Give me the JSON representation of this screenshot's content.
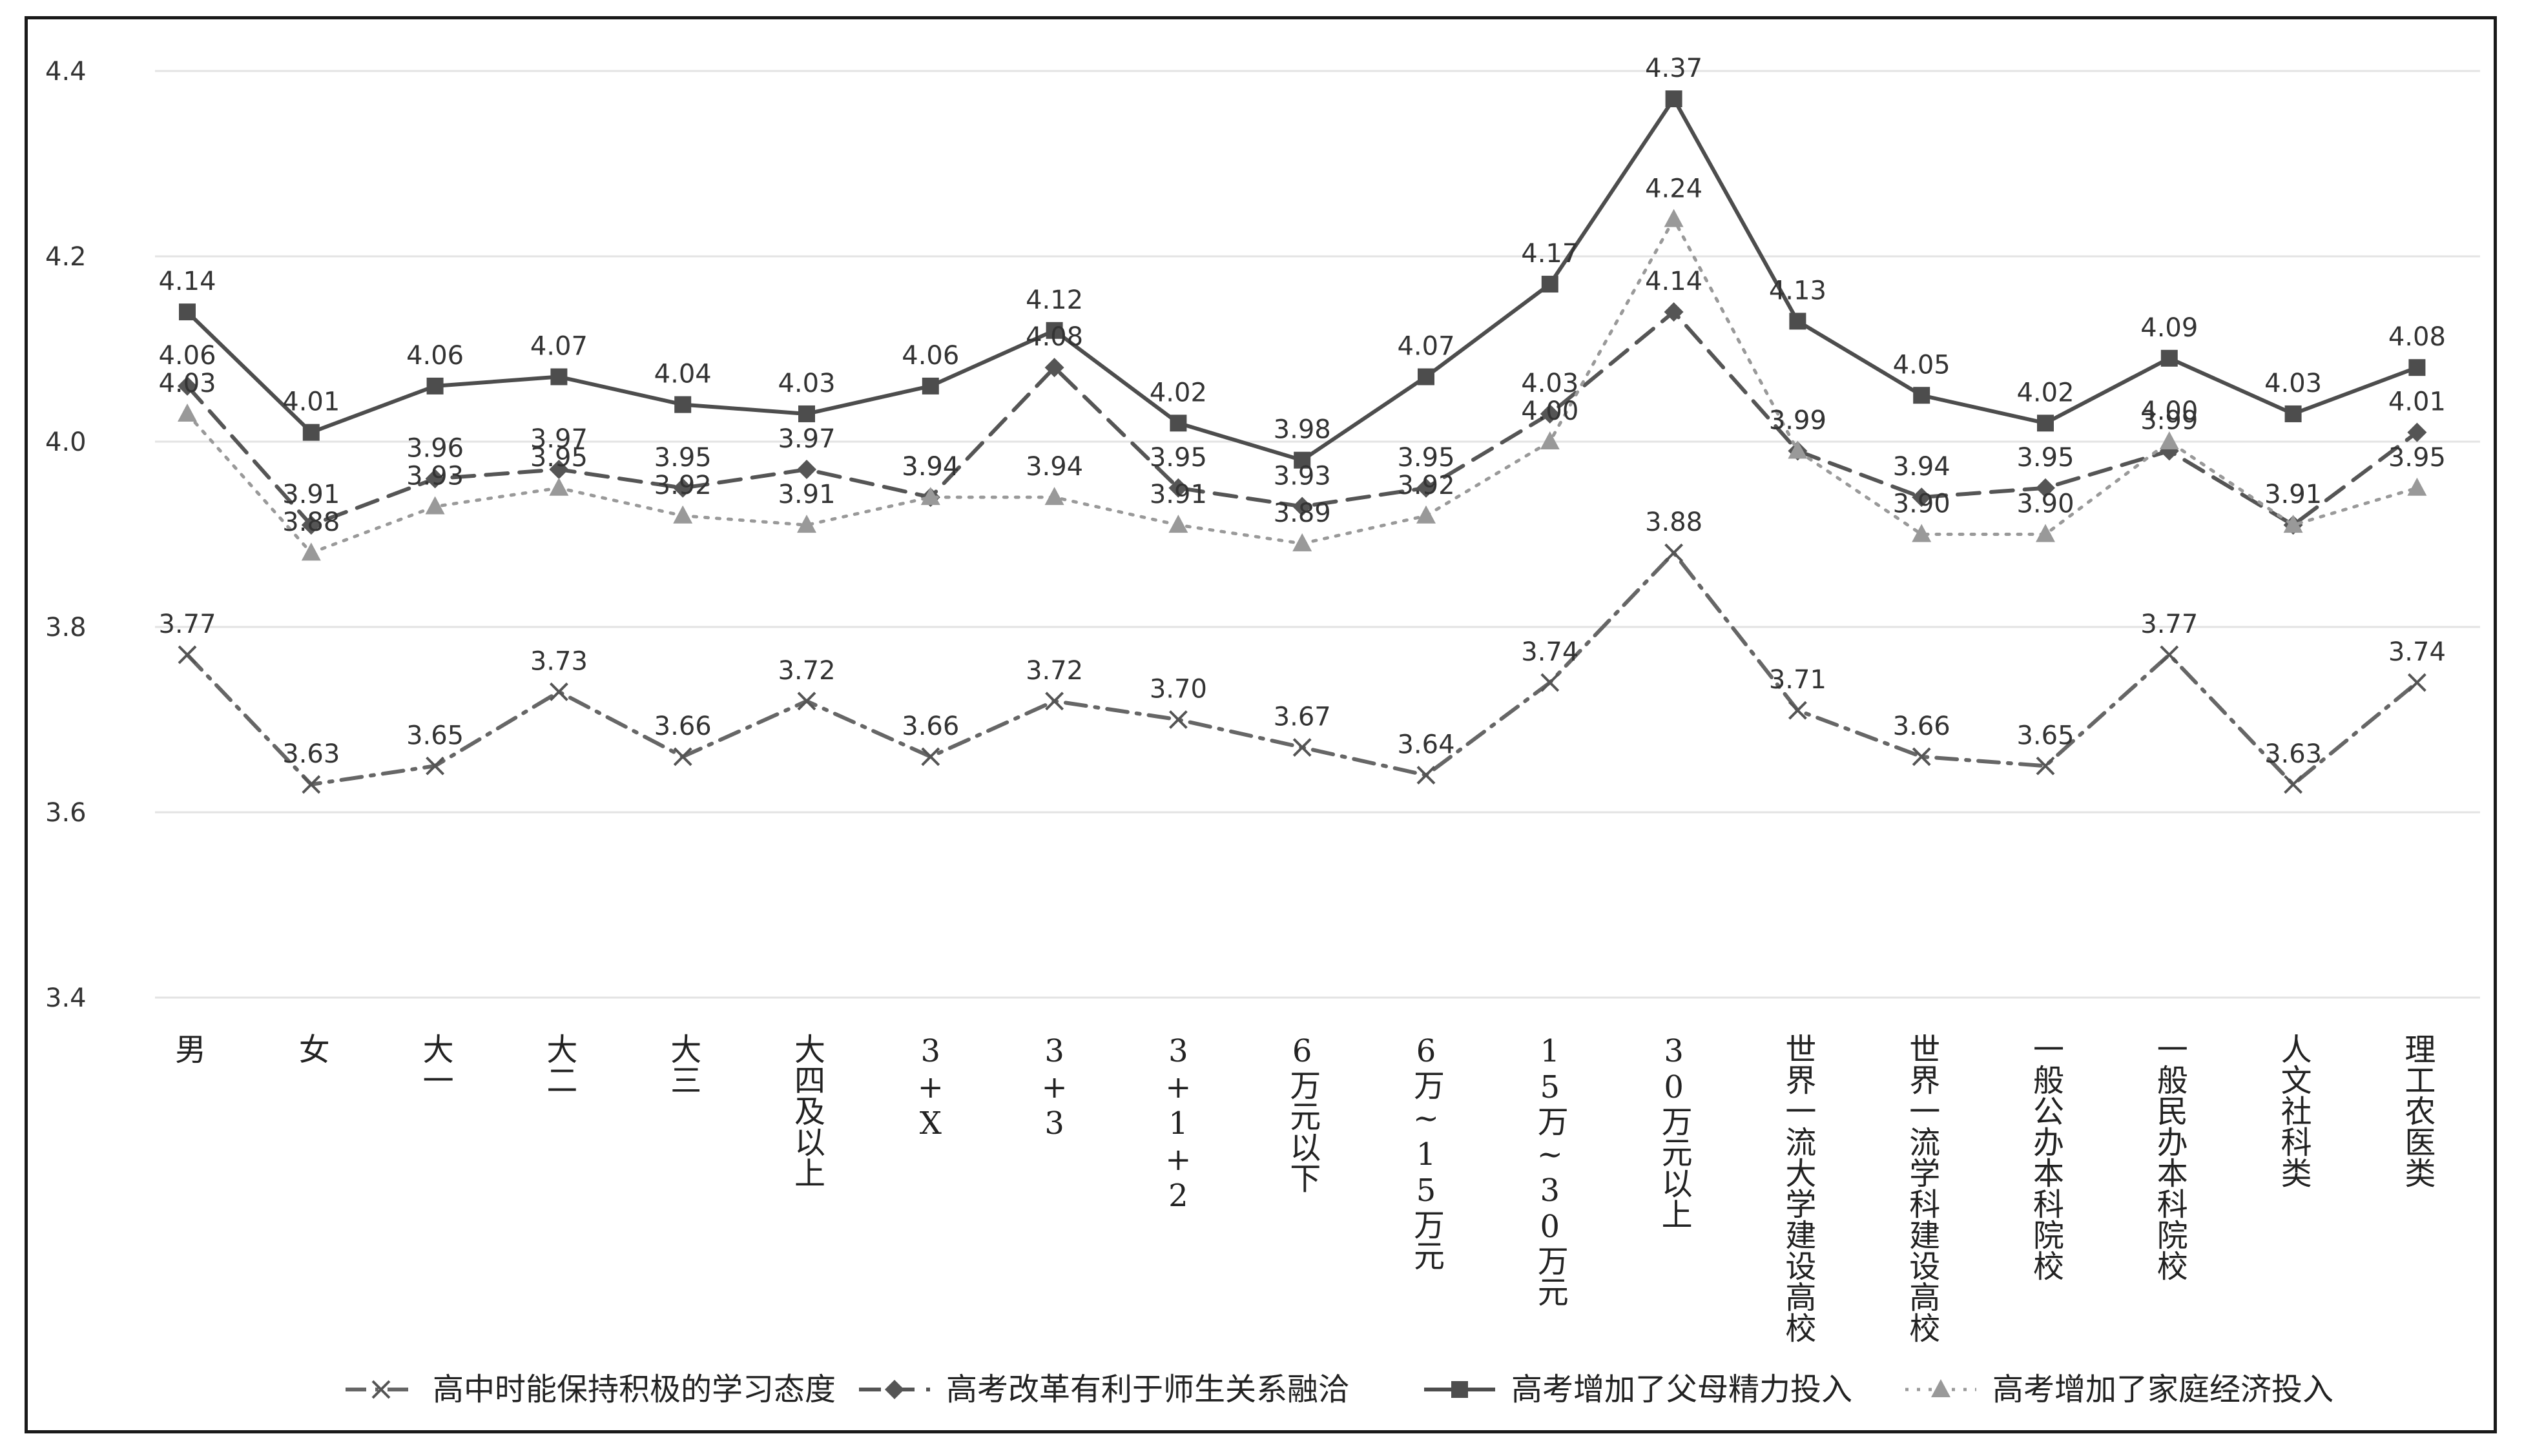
{
  "chart_data": {
    "type": "line",
    "title": "",
    "xlabel": "",
    "ylabel": "",
    "ylim": [
      3.4,
      4.4
    ],
    "yticks": [
      "3.4",
      "3.6",
      "3.8",
      "4.0",
      "4.2",
      "4.4"
    ],
    "grid": true,
    "legend_position": "bottom",
    "categories": [
      "男",
      "女",
      "大一",
      "大二",
      "大三",
      "大四及以上",
      "3+X",
      "3+3",
      "3+1+2",
      "6万元以下",
      "6万~15万元",
      "15万~30万元",
      "30万元以上",
      "世界一流大学建设高校",
      "世界一流学科建设高校",
      "一般公办本科院校",
      "一般民办本科院校",
      "人文社科类",
      "理工农医类"
    ],
    "series": [
      {
        "name": "高中时能保持积极的学习态度",
        "values": [
          3.77,
          3.63,
          3.65,
          3.73,
          3.66,
          3.72,
          3.66,
          3.72,
          3.7,
          3.67,
          3.64,
          3.74,
          3.88,
          3.71,
          3.66,
          3.65,
          3.77,
          3.63,
          3.74
        ],
        "labels": [
          "3.77",
          "3.63",
          "3.65",
          "3.73",
          "3.66",
          "3.72",
          "3.66",
          "3.72",
          "3.70",
          "3.67",
          "3.64",
          "3.74",
          "3.88",
          "3.71",
          "3.66",
          "3.65",
          "3.77",
          "3.63",
          "3.74"
        ],
        "marker": "x",
        "dash": "dashdot",
        "color": "#666666"
      },
      {
        "name": "高考改革有利于师生关系融洽",
        "values": [
          4.06,
          3.91,
          3.96,
          3.97,
          3.95,
          3.97,
          3.94,
          4.08,
          3.95,
          3.93,
          3.95,
          4.03,
          4.14,
          3.99,
          3.94,
          3.95,
          3.99,
          3.91,
          4.01
        ],
        "labels": [
          "4.06",
          "3.91",
          "3.96",
          "3.97",
          "3.95",
          "3.97",
          "3.94",
          "4.08",
          "3.95",
          "3.93",
          "3.95",
          "4.03",
          "4.14",
          "3.99",
          "3.94",
          "3.95",
          "3.99",
          "3.91",
          "4.01"
        ],
        "marker": "diamond",
        "dash": "dashed",
        "color": "#555555"
      },
      {
        "name": "高考增加了父母精力投入",
        "values": [
          4.14,
          4.01,
          4.06,
          4.07,
          4.04,
          4.03,
          4.06,
          4.12,
          4.02,
          3.98,
          4.07,
          4.17,
          4.37,
          4.13,
          4.05,
          4.02,
          4.09,
          4.03,
          4.08
        ],
        "labels": [
          "4.14",
          "4.01",
          "4.06",
          "4.07",
          "4.04",
          "4.03",
          "4.06",
          "4.12",
          "4.02",
          "3.98",
          "4.07",
          "4.17",
          "4.37",
          "4.13",
          "4.05",
          "4.02",
          "4.09",
          "4.03",
          "4.08"
        ],
        "marker": "square",
        "dash": "solid",
        "color": "#4d4d4d"
      },
      {
        "name": "高考增加了家庭经济投入",
        "values": [
          4.03,
          3.88,
          3.93,
          3.95,
          3.92,
          3.91,
          3.94,
          3.94,
          3.91,
          3.89,
          3.92,
          4.0,
          4.24,
          3.99,
          3.9,
          3.9,
          4.0,
          3.91,
          3.95
        ],
        "labels": [
          "4.03",
          "3.88",
          "3.93",
          "3.95",
          "3.92",
          "3.91",
          "3.94",
          "3.94",
          "3.91",
          "3.89",
          "3.92",
          "4.00",
          "4.24",
          "3.99",
          "3.90",
          "3.90",
          "4.00",
          "3.91",
          "3.95"
        ],
        "marker": "triangle",
        "dash": "dotted",
        "color": "#999999"
      }
    ]
  }
}
